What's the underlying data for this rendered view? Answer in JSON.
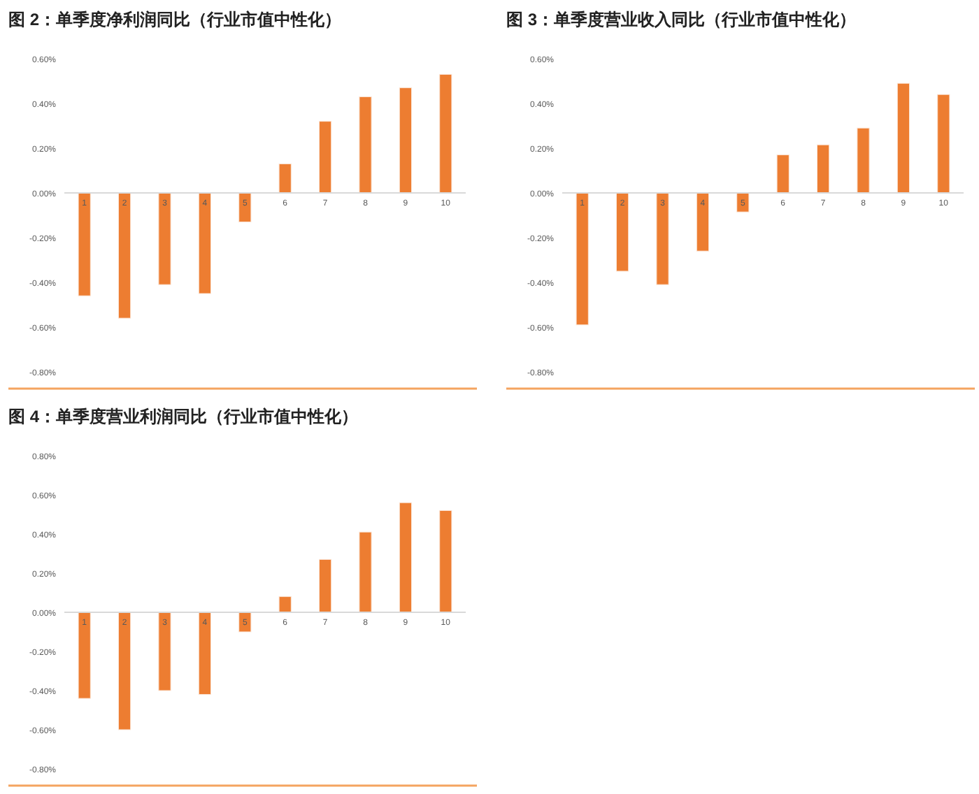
{
  "chart_data": [
    {
      "type": "bar",
      "title": "图 2：单季度净利润同比（行业市值中性化）",
      "categories": [
        "1",
        "2",
        "3",
        "4",
        "5",
        "6",
        "7",
        "8",
        "9",
        "10"
      ],
      "color": "#ed7d31",
      "values": [
        -0.46,
        -0.56,
        -0.41,
        -0.45,
        -0.13,
        0.13,
        0.32,
        0.43,
        0.47,
        0.53
      ],
      "ylim": [
        -0.8,
        0.6
      ],
      "yticks": [
        {
          "value": 0.6,
          "label": "0.60%"
        },
        {
          "value": 0.4,
          "label": "0.40%"
        },
        {
          "value": 0.2,
          "label": "0.20%"
        },
        {
          "value": 0,
          "label": "0.00%"
        },
        {
          "value": -0.2,
          "label": "-0.20%"
        },
        {
          "value": -0.4,
          "label": "-0.40%"
        },
        {
          "value": -0.6,
          "label": "-0.60%"
        },
        {
          "value": -0.8,
          "label": "-0.80%"
        }
      ],
      "grid": false
    },
    {
      "type": "bar",
      "title": "图 3：单季度营业收入同比（行业市值中性化）",
      "categories": [
        "1",
        "2",
        "3",
        "4",
        "5",
        "6",
        "7",
        "8",
        "9",
        "10"
      ],
      "color": "#ed7d31",
      "values": [
        -0.59,
        -0.35,
        -0.41,
        -0.26,
        -0.085,
        0.17,
        0.215,
        0.29,
        0.49,
        0.44
      ],
      "ylim": [
        -0.8,
        0.6
      ],
      "yticks": [
        {
          "value": 0.6,
          "label": "0.60%"
        },
        {
          "value": 0.4,
          "label": "0.40%"
        },
        {
          "value": 0.2,
          "label": "0.20%"
        },
        {
          "value": 0,
          "label": "0.00%"
        },
        {
          "value": -0.2,
          "label": "-0.20%"
        },
        {
          "value": -0.4,
          "label": "-0.40%"
        },
        {
          "value": -0.6,
          "label": "-0.60%"
        },
        {
          "value": -0.8,
          "label": "-0.80%"
        }
      ],
      "grid": false
    },
    {
      "type": "bar",
      "title": "图 4：单季度营业利润同比（行业市值中性化）",
      "categories": [
        "1",
        "2",
        "3",
        "4",
        "5",
        "6",
        "7",
        "8",
        "9",
        "10"
      ],
      "color": "#ed7d31",
      "values": [
        -0.44,
        -0.6,
        -0.4,
        -0.42,
        -0.1,
        0.08,
        0.27,
        0.41,
        0.56,
        0.52
      ],
      "ylim": [
        -0.8,
        0.8
      ],
      "yticks": [
        {
          "value": 0.8,
          "label": "0.80%"
        },
        {
          "value": 0.6,
          "label": "0.60%"
        },
        {
          "value": 0.4,
          "label": "0.40%"
        },
        {
          "value": 0.2,
          "label": "0.20%"
        },
        {
          "value": 0,
          "label": "0.00%"
        },
        {
          "value": -0.2,
          "label": "-0.20%"
        },
        {
          "value": -0.4,
          "label": "-0.40%"
        },
        {
          "value": -0.6,
          "label": "-0.60%"
        },
        {
          "value": -0.8,
          "label": "-0.80%"
        }
      ],
      "grid": false
    }
  ]
}
